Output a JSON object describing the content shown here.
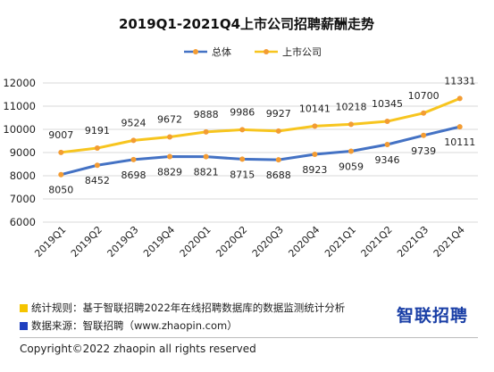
{
  "chart_data": {
    "type": "line",
    "title": "2019Q1-2021Q4上市公司招聘薪酬走势",
    "categories": [
      "2019Q1",
      "2019Q2",
      "2019Q3",
      "2019Q4",
      "2020Q1",
      "2020Q2",
      "2020Q3",
      "2020Q4",
      "2021Q1",
      "2021Q2",
      "2021Q3",
      "2021Q4"
    ],
    "series": [
      {
        "name": "总体",
        "color": "#4472c4",
        "label_position": "below",
        "values": [
          8050,
          8452,
          8698,
          8829,
          8821,
          8715,
          8688,
          8923,
          9059,
          9346,
          9739,
          10111
        ]
      },
      {
        "name": "上市公司",
        "color": "#f7c51f",
        "label_position": "above",
        "values": [
          9007,
          9191,
          9524,
          9672,
          9888,
          9986,
          9927,
          10141,
          10218,
          10345,
          10700,
          11331
        ]
      }
    ],
    "marker_color": "#f39c33",
    "ylim": [
      6000,
      12000
    ],
    "yticks": [
      6000,
      7000,
      8000,
      9000,
      10000,
      11000,
      12000
    ],
    "grid": true,
    "legend_position": "top"
  },
  "notes": {
    "rule": "统计规则：基于智联招聘2022年在线招聘数据库的数据监测统计分析",
    "rule_color": "#f5c400",
    "source": "数据来源：智联招聘（www.zhaopin.com）",
    "source_color": "#1f3fbf"
  },
  "brand": {
    "logo_text": "智联招聘"
  },
  "footer": {
    "copyright": "Copyright©2022 zhaopin all rights reserved"
  }
}
